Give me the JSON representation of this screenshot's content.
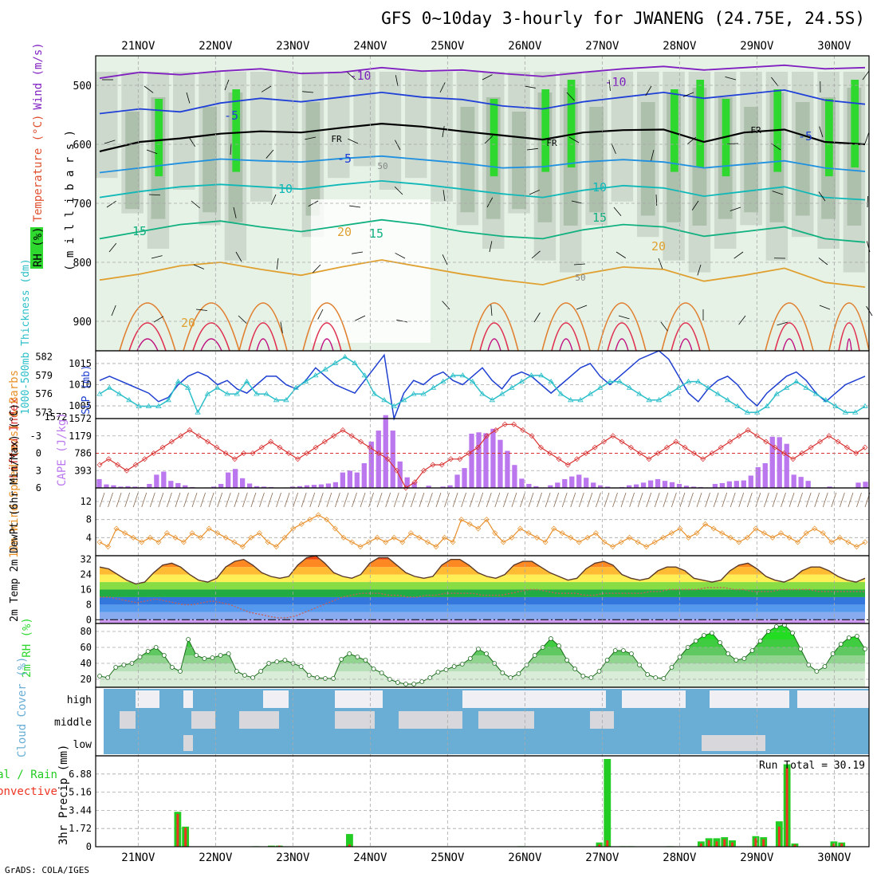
{
  "header": {
    "title": "GFS 0~10day 3-hourly for JWANENG (24.75E, 24.5S)",
    "credit": "GrADS: COLA/IGES"
  },
  "time_axis": {
    "labels": [
      "21NOV",
      "22NOV",
      "23NOV",
      "24NOV",
      "25NOV",
      "26NOV",
      "27NOV",
      "28NOV",
      "29NOV",
      "30NOV"
    ]
  },
  "colors": {
    "frame": "#000000",
    "grid": "#a8a8a8",
    "rh_light": "#e6f2e6",
    "rh_mid": "#c9d6c9",
    "rh_dark": "#a8bca8",
    "rh_green": "#2ed82e",
    "slp": "#1f3fd0",
    "thickness": "#2bbfc9",
    "lifted_index": "#d83030",
    "cape": "#bb77ee",
    "wind10": "#e8902a",
    "barb": "#8a6a50",
    "temp_line": "#5a3a2a",
    "dewpt_line": "#c06060",
    "rh2m": "#2ed82e",
    "cloud": "#6aaed6",
    "cloud_white": "#f0f0f4",
    "cloud_gray": "#d8d8dc",
    "precip_total": "#22cc22",
    "precip_conv": "#ee3322"
  },
  "chart_data": [
    {
      "id": "upper_air",
      "type": "heatmap",
      "ylabel_parts": [
        "RH (%)",
        "Temperature (°C)",
        "Wind (m/s)"
      ],
      "ylabel_unit": "( m i l l i b a r s )",
      "y_ticks": [
        500,
        600,
        700,
        800,
        900
      ],
      "ylim": [
        950,
        450
      ],
      "contour_labels": [
        "-10",
        "-10",
        "-5",
        "-5",
        "-5",
        "FR",
        "FR",
        "FR",
        "10",
        "10",
        "15",
        "15",
        "15",
        "20",
        "20",
        "20",
        "50",
        "50"
      ],
      "isotherms": [
        {
          "label": "-10",
          "p": [
            488,
            478,
            482,
            476,
            472,
            480,
            478,
            470,
            476,
            474,
            480,
            485,
            478,
            472,
            468,
            474,
            470,
            466,
            472,
            470
          ]
        },
        {
          "label": "-5",
          "p": [
            548,
            540,
            545,
            530,
            522,
            528,
            520,
            512,
            520,
            524,
            535,
            540,
            528,
            520,
            512,
            522,
            515,
            508,
            525,
            532
          ]
        },
        {
          "label": "FR",
          "p": [
            612,
            596,
            590,
            582,
            578,
            580,
            572,
            565,
            570,
            578,
            585,
            592,
            580,
            576,
            575,
            596,
            580,
            575,
            596,
            600
          ]
        },
        {
          "label": "-5_low",
          "p": [
            648,
            640,
            632,
            625,
            628,
            630,
            624,
            620,
            626,
            632,
            640,
            638,
            630,
            626,
            630,
            640,
            634,
            628,
            640,
            646
          ]
        },
        {
          "label": "10",
          "p": [
            690,
            680,
            672,
            668,
            672,
            676,
            668,
            662,
            668,
            676,
            684,
            690,
            678,
            670,
            674,
            688,
            680,
            672,
            690,
            694
          ]
        },
        {
          "label": "15",
          "p": [
            760,
            748,
            736,
            730,
            740,
            748,
            738,
            728,
            736,
            748,
            756,
            760,
            745,
            736,
            740,
            756,
            748,
            740,
            760,
            766
          ]
        },
        {
          "label": "20",
          "p": [
            830,
            820,
            806,
            800,
            812,
            822,
            808,
            796,
            808,
            820,
            830,
            838,
            820,
            808,
            812,
            832,
            822,
            810,
            834,
            842
          ]
        }
      ],
      "rh_columns": [
        0.2,
        0.5,
        0.8,
        0.3,
        0.6,
        0.9,
        0.4,
        0.3,
        0.7,
        0.2,
        0.1,
        0.3,
        0.2,
        0.4,
        0.6,
        0.8,
        0.5,
        0.9,
        1.0,
        0.6,
        0.4,
        0.7,
        0.9,
        1.0,
        0.8,
        0.6,
        0.9,
        0.7,
        0.8,
        1.0
      ]
    },
    {
      "id": "slp_thickness",
      "type": "line",
      "ylabel_left": "1000-500mb Thickness (dm)",
      "ylabel_right": "SLP (mb)",
      "left_ticks": [
        573,
        576,
        579,
        582
      ],
      "right_ticks": [
        1005,
        1010,
        1015
      ],
      "extra_tick": "1572",
      "left_ylim": [
        572,
        583
      ],
      "right_ylim": [
        1002,
        1018
      ],
      "series": [
        {
          "name": "SLP",
          "values": [
            1011,
            1012,
            1011,
            1010,
            1009,
            1008,
            1006,
            1007,
            1010,
            1012,
            1013,
            1012,
            1010,
            1011,
            1009,
            1008,
            1010,
            1012,
            1012,
            1010,
            1009,
            1011,
            1014,
            1012,
            1010,
            1009,
            1008,
            1011,
            1014,
            1017,
            1002,
            1008,
            1011,
            1010,
            1012,
            1013,
            1011,
            1010,
            1012,
            1014,
            1011,
            1009,
            1012,
            1013,
            1012,
            1010,
            1008,
            1010,
            1012,
            1014,
            1015,
            1012,
            1010,
            1012,
            1014,
            1016,
            1017,
            1018,
            1016,
            1012,
            1008,
            1006,
            1009,
            1011,
            1012,
            1010,
            1007,
            1005,
            1008,
            1010,
            1012,
            1013,
            1011,
            1008,
            1006,
            1008,
            1010,
            1011,
            1012
          ]
        },
        {
          "name": "Thickness",
          "values": [
            576,
            577,
            576,
            575,
            574,
            574,
            574,
            575,
            578,
            577,
            573,
            576,
            577,
            576,
            576,
            578,
            576,
            576,
            575,
            575,
            577,
            578,
            579,
            580,
            581,
            582,
            581,
            579,
            576,
            575,
            574,
            575,
            576,
            576,
            577,
            578,
            579,
            579,
            578,
            576,
            575,
            576,
            577,
            578,
            579,
            579,
            578,
            576,
            575,
            575,
            576,
            577,
            578,
            578,
            577,
            576,
            575,
            575,
            576,
            577,
            578,
            578,
            577,
            576,
            575,
            574,
            573,
            573,
            574,
            576,
            577,
            578,
            577,
            576,
            575,
            574,
            573,
            573,
            574
          ]
        }
      ]
    },
    {
      "id": "li_cape",
      "type": "bar",
      "ylabel_left": "Lifted Index",
      "ylabel_right": "CAPE (J/kg)",
      "left_ticks": [
        "-3",
        "0",
        "3",
        "6"
      ],
      "right_ticks": [
        "393",
        "786",
        "1179",
        "1572"
      ],
      "li_ylim": [
        6,
        -6
      ],
      "cape_ylim": [
        0,
        1572
      ],
      "cape": [
        200,
        80,
        60,
        30,
        40,
        30,
        20,
        90,
        300,
        370,
        160,
        110,
        60,
        20,
        0,
        10,
        30,
        90,
        350,
        430,
        220,
        100,
        40,
        30,
        20,
        0,
        10,
        30,
        40,
        60,
        70,
        80,
        100,
        130,
        350,
        390,
        350,
        560,
        1050,
        1300,
        1650,
        1300,
        600,
        240,
        130,
        10,
        50,
        0,
        30,
        60,
        300,
        450,
        1230,
        1260,
        1240,
        1340,
        1090,
        840,
        520,
        210,
        90,
        40,
        10,
        60,
        120,
        200,
        260,
        300,
        230,
        120,
        60,
        30,
        10,
        20,
        60,
        80,
        120,
        170,
        200,
        160,
        130,
        90,
        50,
        30,
        20,
        10,
        90,
        110,
        150,
        160,
        170,
        280,
        470,
        560,
        1160,
        1150,
        1000,
        300,
        250,
        160,
        0,
        10,
        30,
        0,
        0,
        0,
        120,
        140
      ],
      "li": [
        2,
        1,
        2,
        3,
        2,
        1,
        0,
        -1,
        -2,
        -3,
        -4,
        -3,
        -2,
        -1,
        0,
        1,
        0,
        0,
        -1,
        -2,
        -1,
        0,
        1,
        0,
        -1,
        -2,
        -3,
        -4,
        -3,
        -2,
        -1,
        0,
        1,
        3,
        6,
        5,
        3,
        2,
        2,
        1,
        1,
        0,
        -1,
        -3,
        -4,
        -5,
        -5,
        -4,
        -3,
        -1,
        0,
        1,
        2,
        1,
        0,
        -1,
        -2,
        -3,
        -2,
        -1,
        0,
        1,
        0,
        -1,
        -2,
        -1,
        0,
        1,
        0,
        -1,
        -2,
        -3,
        -4,
        -3,
        -2,
        -1,
        0,
        1,
        0,
        -1,
        -2,
        -3,
        -2,
        -1,
        0,
        -1
      ]
    },
    {
      "id": "wind10m",
      "type": "line",
      "ylabel": "10m Wind Speed (m/s) & Barbs",
      "y_ticks": [
        "4",
        "8",
        "12"
      ],
      "ylim": [
        0,
        15
      ],
      "values": [
        3,
        2,
        6,
        5,
        4,
        3,
        4,
        3,
        5,
        4,
        3,
        5,
        4,
        6,
        5,
        4,
        3,
        2,
        4,
        5,
        3,
        2,
        4,
        6,
        7,
        8,
        9,
        8,
        6,
        4,
        3,
        2,
        3,
        4,
        3,
        4,
        3,
        5,
        4,
        3,
        2,
        4,
        3,
        8,
        7,
        6,
        8,
        5,
        3,
        4,
        6,
        5,
        4,
        3,
        6,
        5,
        4,
        3,
        4,
        5,
        3,
        2,
        3,
        4,
        3,
        2,
        3,
        4,
        5,
        6,
        4,
        5,
        7,
        6,
        5,
        4,
        3,
        4,
        6,
        5,
        4,
        5,
        4,
        3,
        5,
        6,
        5,
        3,
        4,
        3,
        2,
        3
      ]
    },
    {
      "id": "temp2m",
      "type": "area",
      "ylabel": "2m Temp 2m DewPt (6hr Min/Max) (°C)",
      "y_ticks": [
        "0",
        "8",
        "16",
        "24",
        "32"
      ],
      "ylim": [
        -2,
        34
      ],
      "temp": [
        28,
        27,
        24,
        21,
        19,
        20,
        25,
        29,
        30,
        28,
        24,
        21,
        20,
        22,
        28,
        31,
        32,
        29,
        25,
        23,
        22,
        23,
        29,
        33,
        34,
        30,
        25,
        23,
        22,
        24,
        30,
        33,
        33,
        29,
        25,
        23,
        22,
        23,
        29,
        32,
        32,
        29,
        25,
        23,
        22,
        24,
        29,
        31,
        31,
        28,
        25,
        23,
        21,
        22,
        27,
        30,
        31,
        29,
        24,
        22,
        21,
        22,
        26,
        28,
        28,
        26,
        22,
        21,
        20,
        21,
        26,
        29,
        30,
        27,
        23,
        21,
        20,
        22,
        26,
        28,
        28,
        26,
        23,
        21,
        20,
        22
      ],
      "dewpt": [
        12,
        12,
        11,
        10,
        9,
        10,
        11,
        10,
        9,
        8,
        8,
        9,
        10,
        9,
        8,
        6,
        4,
        3,
        2,
        1,
        1,
        2,
        4,
        6,
        8,
        10,
        12,
        13,
        14,
        14,
        14,
        13,
        13,
        12,
        12,
        13,
        13,
        14,
        14,
        14,
        14,
        13,
        13,
        13,
        14,
        15,
        16,
        16,
        15,
        14,
        14,
        14,
        13,
        13,
        14,
        14,
        14,
        14,
        14,
        15,
        15,
        16,
        16,
        16,
        16,
        17,
        17,
        17,
        16,
        16,
        15,
        15,
        15,
        16,
        16,
        16,
        16,
        15,
        15,
        15,
        15,
        15,
        15
      ]
    },
    {
      "id": "rh2m",
      "type": "area",
      "ylabel": "2m RH (%)",
      "y_ticks": [
        "20",
        "40",
        "60",
        "80"
      ],
      "ylim": [
        10,
        90
      ],
      "values": [
        24,
        22,
        35,
        38,
        40,
        48,
        55,
        60,
        50,
        35,
        30,
        70,
        50,
        46,
        47,
        50,
        52,
        30,
        25,
        22,
        30,
        40,
        42,
        44,
        40,
        36,
        25,
        22,
        21,
        21,
        45,
        52,
        48,
        44,
        33,
        28,
        20,
        16,
        14,
        14,
        17,
        22,
        29,
        32,
        36,
        39,
        46,
        58,
        52,
        40,
        28,
        22,
        27,
        38,
        50,
        60,
        71,
        62,
        44,
        33,
        24,
        22,
        30,
        44,
        56,
        56,
        52,
        38,
        26,
        22,
        21,
        35,
        48,
        60,
        68,
        75,
        78,
        66,
        52,
        44,
        46,
        56,
        68,
        80,
        86,
        88,
        78,
        58,
        38,
        30,
        36,
        52,
        64,
        72,
        74,
        58
      ]
    },
    {
      "id": "cloud",
      "type": "table",
      "ylabel": "Cloud Cover (%)",
      "levels": [
        "high",
        "middle",
        "low"
      ]
    },
    {
      "id": "precip",
      "type": "bar",
      "ylabel_left": "Total / Rain",
      "ylabel_left2": "Convective",
      "ylabel_mid": "3hr Precip (mm)",
      "y_ticks": [
        "0",
        "1.72",
        "3.44",
        "5.16",
        "6.88"
      ],
      "ylim": [
        0,
        8.6
      ],
      "run_total": "Run Total = 30.19",
      "total": [
        0,
        0,
        0,
        0,
        0,
        0,
        0,
        0,
        0,
        0,
        3.3,
        1.9,
        0,
        0,
        0,
        0,
        0,
        0,
        0,
        0,
        0.05,
        0,
        0.1,
        0.1,
        0,
        0,
        0,
        0,
        0,
        0,
        0,
        0,
        1.2,
        0,
        0,
        0,
        0,
        0,
        0,
        0,
        0,
        0,
        0,
        0,
        0,
        0,
        0,
        0,
        0,
        0,
        0,
        0,
        0,
        0,
        0.05,
        0,
        0,
        0,
        0,
        0,
        0,
        0,
        0,
        0,
        0.4,
        8.3,
        0,
        0.05,
        0.05,
        0,
        0,
        0,
        0,
        0.05,
        0,
        0,
        0,
        0.5,
        0.8,
        0.8,
        0.9,
        0.6,
        0,
        0,
        1.0,
        0.9,
        0,
        2.4,
        7.8,
        0.3,
        0,
        0,
        0,
        0,
        0.5,
        0.4,
        0,
        0,
        0
      ],
      "conv": [
        0,
        0,
        0,
        0,
        0,
        0,
        0,
        0,
        0,
        0,
        3.1,
        1.8,
        0,
        0,
        0,
        0,
        0,
        0,
        0,
        0,
        0,
        0,
        0.05,
        0.1,
        0,
        0,
        0,
        0,
        0,
        0,
        0,
        0,
        0.2,
        0,
        0,
        0,
        0,
        0,
        0,
        0,
        0,
        0,
        0,
        0,
        0,
        0,
        0,
        0,
        0,
        0,
        0,
        0,
        0,
        0,
        0,
        0,
        0,
        0,
        0,
        0,
        0,
        0,
        0,
        0,
        0.2,
        0.6,
        0,
        0,
        0,
        0,
        0,
        0,
        0,
        0,
        0,
        0,
        0,
        0.3,
        0.6,
        0.5,
        0.7,
        0.4,
        0,
        0,
        0.8,
        0.7,
        0,
        1.9,
        7.5,
        0.2,
        0,
        0,
        0,
        0,
        0.3,
        0.3,
        0,
        0,
        0
      ]
    }
  ]
}
